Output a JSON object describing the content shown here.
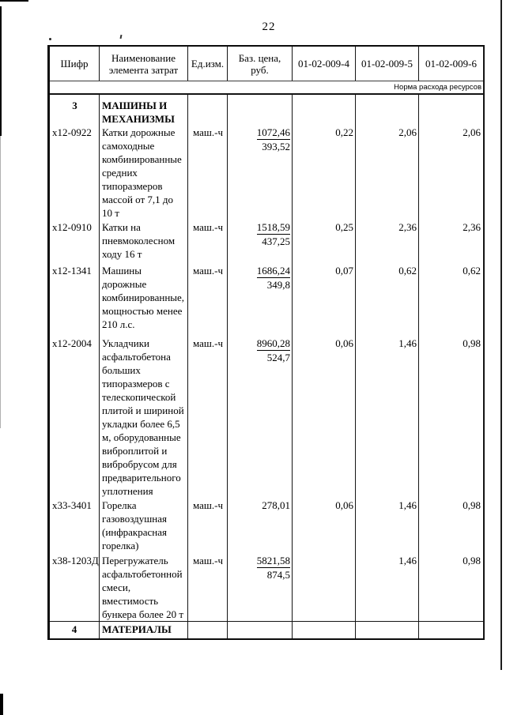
{
  "page": {
    "number": "22"
  },
  "table": {
    "headers": [
      "Шифр",
      "Наименование\nэлемента затрат",
      "Ед.изм.",
      "Баз. цена,\nруб.",
      "01-02-009-4",
      "01-02-009-5",
      "01-02-009-6"
    ],
    "subheader": "Норма расхода ресурсов",
    "rows": [
      {
        "type": "section",
        "code": "3",
        "name": "МАШИНЫ И\nМЕХАНИЗМЫ"
      },
      {
        "type": "item",
        "code": "х12-0922",
        "name": "Катки дорожные\nсамоходные\nкомбинированные\nсредних\nтипоразмеров\nмассой  от 7,1 до\n10 т",
        "unit": "маш.-ч",
        "price_main": "1072,46",
        "price_main_underlined": true,
        "price_sub": "393,52",
        "norm_4": "0,22",
        "norm_5": "2,06",
        "norm_6": "2,06"
      },
      {
        "type": "item",
        "code": "х12-0910",
        "name": "Катки на\nпневмоколесном\nходу 16 т",
        "unit": "маш.-ч",
        "price_main": "1518,59",
        "price_main_underlined": true,
        "price_sub": "437,25",
        "norm_4": "0,25",
        "norm_5": "2,36",
        "norm_6": "2,36"
      },
      {
        "type": "item",
        "code": "х12-1341",
        "name": "Машины\nдорожные\nкомбинированные,\nмощностью менее\n210 л.с.",
        "unit": "маш.-ч",
        "price_main": "1686,24",
        "price_main_underlined": true,
        "price_sub": "349,8",
        "norm_4": "0,07",
        "norm_5": "0,62",
        "norm_6": "0,62"
      },
      {
        "type": "item",
        "code": "х12-2004",
        "name": "Укладчики\nасфальтобетона\nбольших\nтипоразмеров с\nтелескопической\nплитой и шириной\nукладки более 6,5\nм, оборудованные\nвиброплитой и\nвибробрусом для\nпредварительного\nуплотнения",
        "unit": "маш.-ч",
        "price_main": "8960,28",
        "price_main_underlined": true,
        "price_sub": "524,7",
        "norm_4": "0,06",
        "norm_5": "1,46",
        "norm_6": "0,98"
      },
      {
        "type": "item",
        "code": "х33-3401",
        "name": "Горелка\nгазовоздушная\n(инфракрасная\nгорелка)",
        "unit": "маш.-ч",
        "price_main": "278,01",
        "price_main_underlined": false,
        "price_sub": "",
        "norm_4": "0,06",
        "norm_5": "1,46",
        "norm_6": "0,98"
      },
      {
        "type": "item",
        "code": "х38-1203Д",
        "name": "Перегружатель\nасфальтобетонной\nсмеси,\nвместимость\nбункера более 20 т",
        "unit": "маш.-ч",
        "price_main": "5821,58",
        "price_main_underlined": true,
        "price_sub": "874,5",
        "norm_4": "",
        "norm_5": "1,46",
        "norm_6": "0,98"
      }
    ],
    "materials_row": {
      "code": "4",
      "name": "МАТЕРИАЛЫ"
    }
  }
}
